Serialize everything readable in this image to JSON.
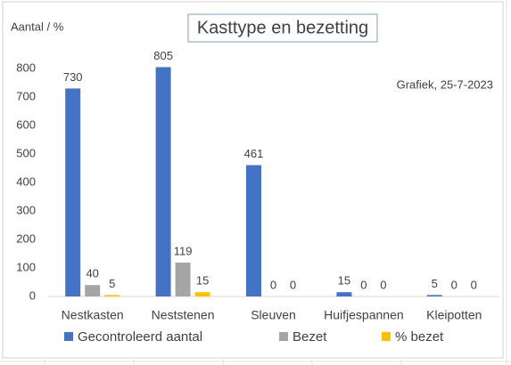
{
  "chart_data": {
    "type": "bar",
    "title": "Kasttype en bezetting",
    "y_label": "Aantal / %",
    "annotation": "Grafiek, 25-7-2023",
    "categories": [
      "Nestkasten",
      "Neststenen",
      "Sleuven",
      "Huifjespannen",
      "Kleipotten"
    ],
    "series": [
      {
        "name": "Gecontroleerd aantal",
        "color": "#4472c4",
        "values": [
          730,
          805,
          461,
          15,
          5
        ]
      },
      {
        "name": "Bezet",
        "color": "#a5a5a5",
        "values": [
          40,
          119,
          0,
          0,
          0
        ]
      },
      {
        "name": "% bezet",
        "color": "#ffc000",
        "values": [
          5,
          15,
          0,
          0,
          0
        ]
      }
    ],
    "ylim": [
      0,
      850
    ],
    "yticks": [
      0,
      100,
      200,
      300,
      400,
      500,
      600,
      700,
      800
    ],
    "grid": false,
    "legend": "bottom"
  }
}
